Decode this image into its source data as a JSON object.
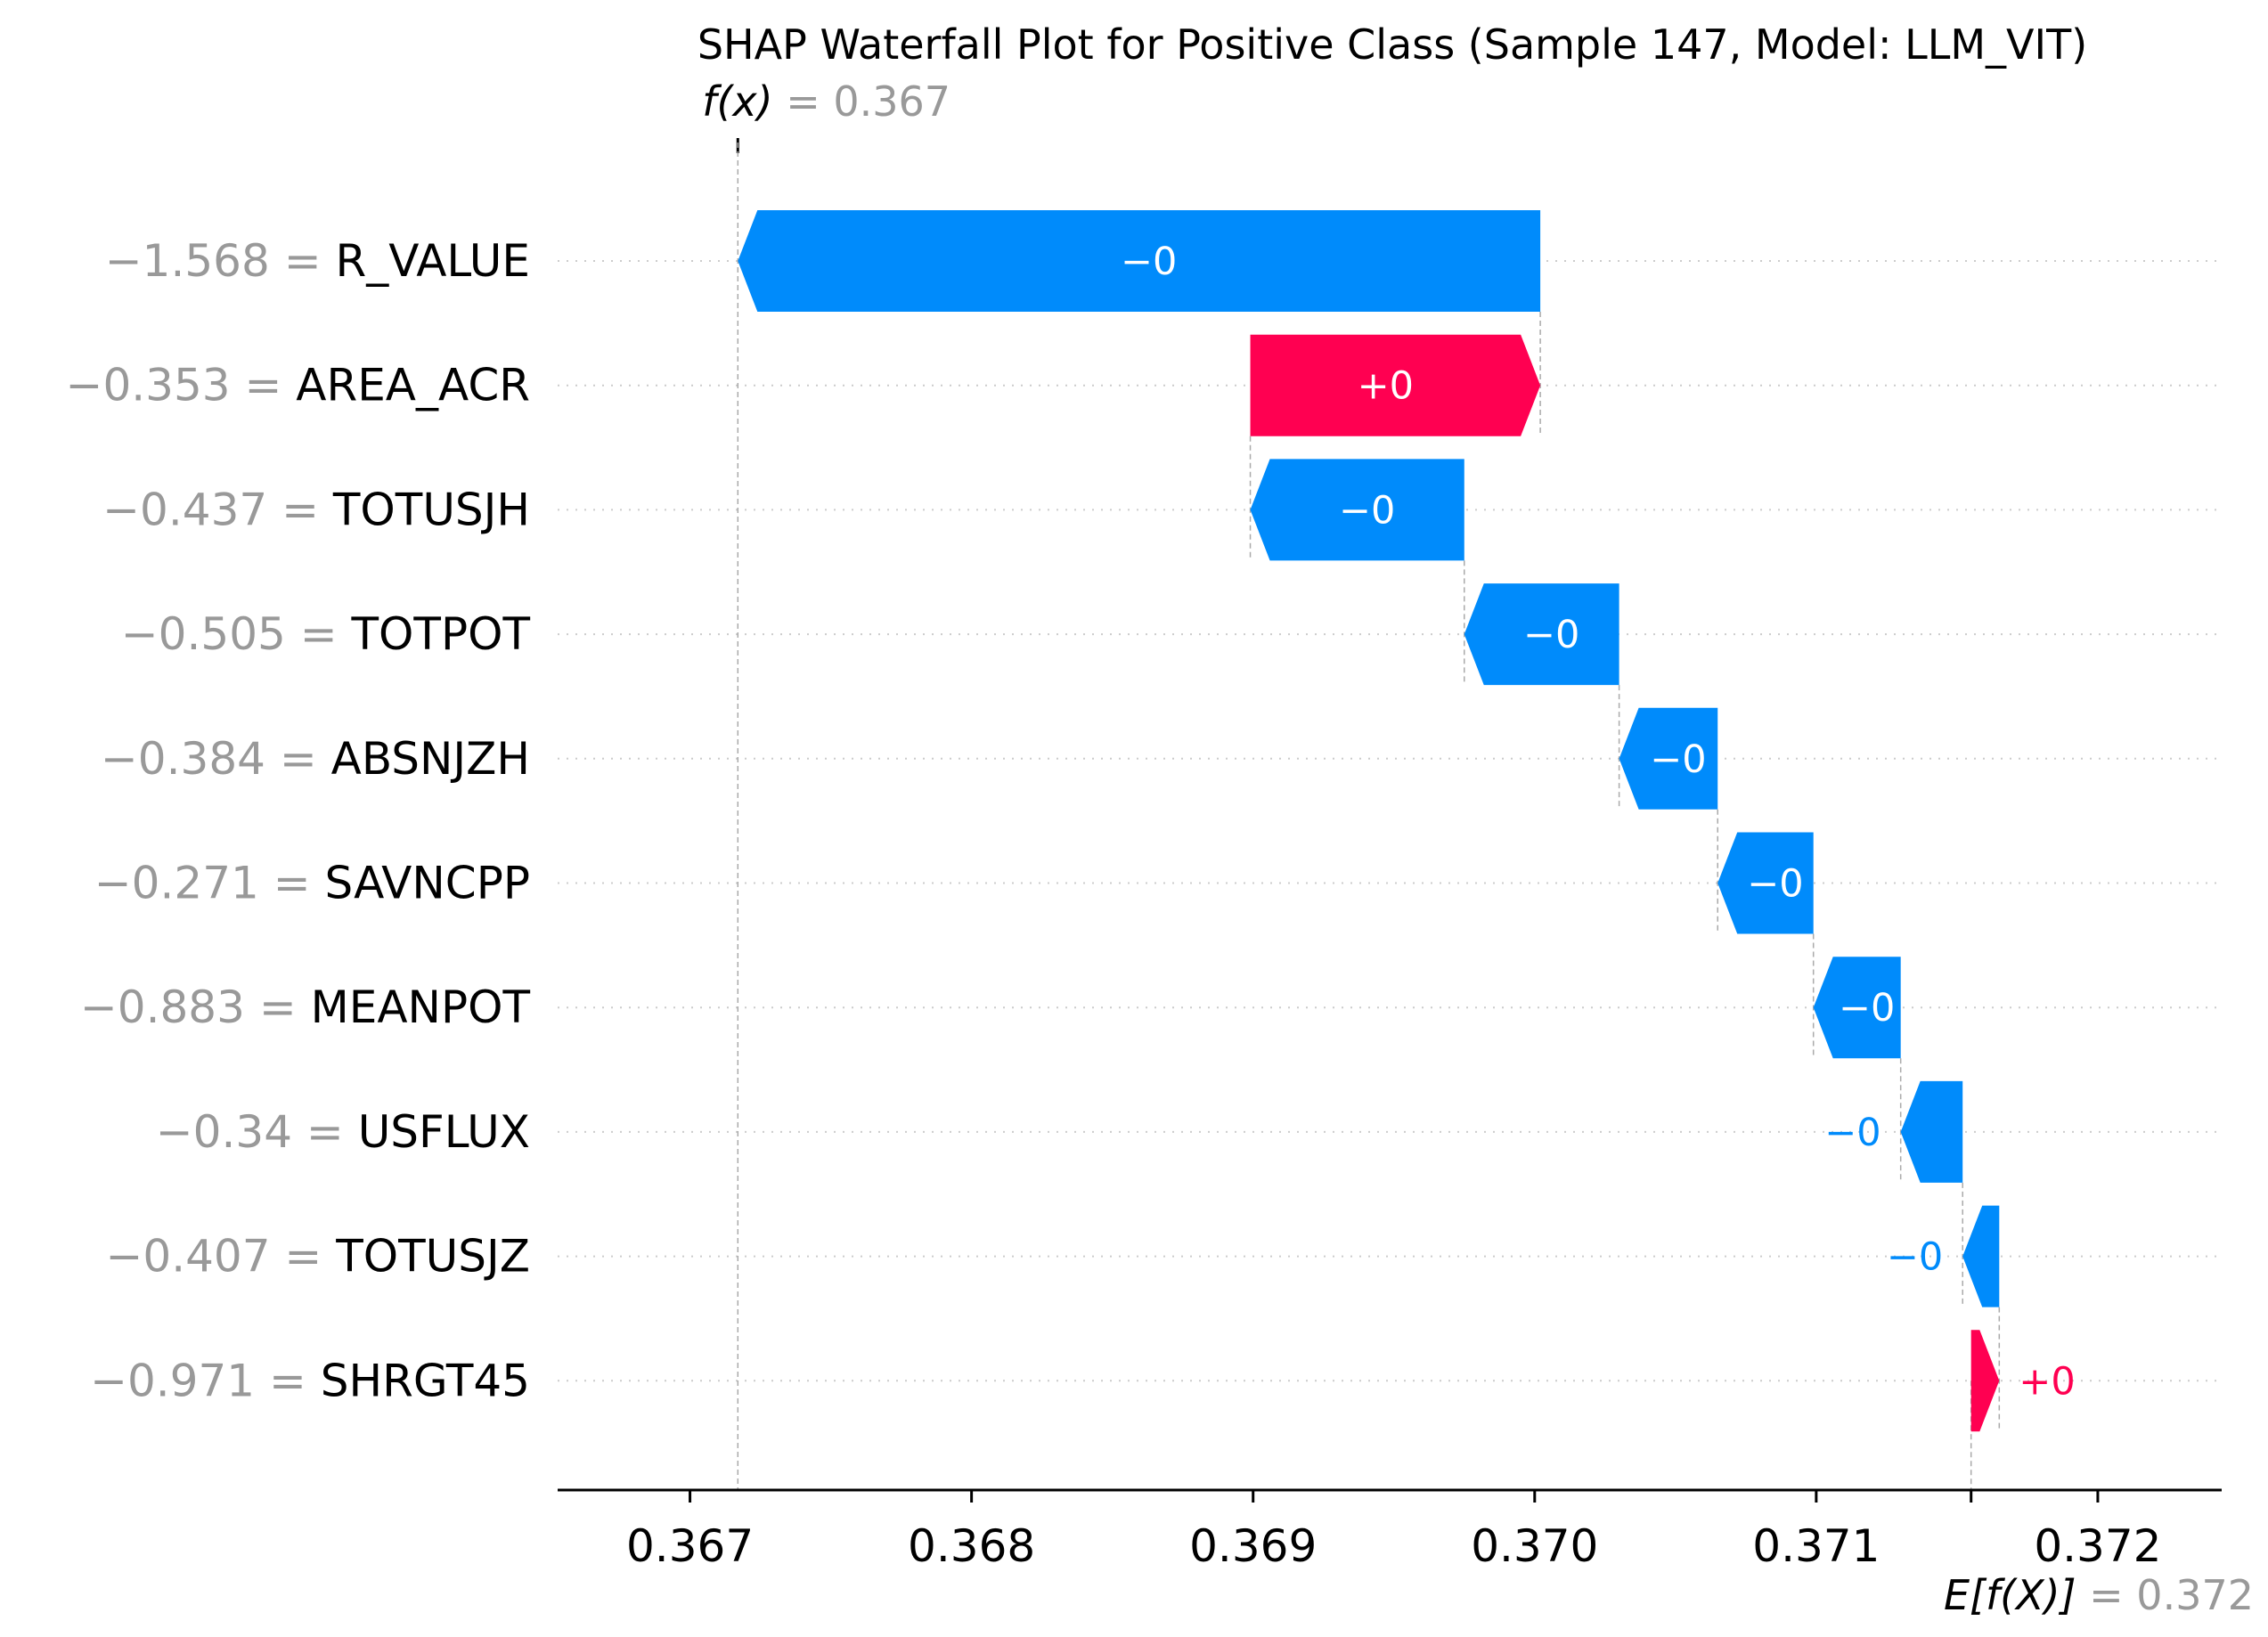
{
  "chart_data": {
    "type": "waterfall",
    "title": "SHAP Waterfall Plot for Positive Class (Sample 147, Model: LLM_VIT)",
    "fx": {
      "label": "f(x)",
      "value_text": "= 0.367",
      "value": 0.36717
    },
    "efx": {
      "label": "E[f(X)]",
      "value_text": "= 0.372",
      "value": 0.37155
    },
    "xlim": [
      0.36653,
      0.37244
    ],
    "xticks": [
      0.367,
      0.368,
      0.369,
      0.37,
      0.371,
      0.372
    ],
    "xtick_labels": [
      "0.367",
      "0.368",
      "0.369",
      "0.370",
      "0.371",
      "0.372"
    ],
    "colors": {
      "positive": "#ff0051",
      "negative": "#008bfb",
      "feature_value": "#999999",
      "gridline": "#cccccc"
    },
    "features": [
      {
        "feature_value": "−1.568 =",
        "name": "R_VALUE",
        "start": 0.37002,
        "end": 0.36717,
        "label": "−0",
        "sign": "negative"
      },
      {
        "feature_value": "−0.353 =",
        "name": "AREA_ACR",
        "start": 0.36899,
        "end": 0.37002,
        "label": "+0",
        "sign": "positive"
      },
      {
        "feature_value": "−0.437 =",
        "name": "TOTUSJH",
        "start": 0.36975,
        "end": 0.36899,
        "label": "−0",
        "sign": "negative"
      },
      {
        "feature_value": "−0.505 =",
        "name": "TOTPOT",
        "start": 0.3703,
        "end": 0.36975,
        "label": "−0",
        "sign": "negative"
      },
      {
        "feature_value": "−0.384 =",
        "name": "ABSNJZH",
        "start": 0.37065,
        "end": 0.3703,
        "label": "−0",
        "sign": "negative"
      },
      {
        "feature_value": "−0.271 =",
        "name": "SAVNCPP",
        "start": 0.37099,
        "end": 0.37065,
        "label": "−0",
        "sign": "negative"
      },
      {
        "feature_value": "−0.883 =",
        "name": "MEANPOT",
        "start": 0.3713,
        "end": 0.37099,
        "label": "−0",
        "sign": "negative"
      },
      {
        "feature_value": "−0.34 =",
        "name": "USFLUX",
        "start": 0.37152,
        "end": 0.3713,
        "label": "−0",
        "sign": "negative"
      },
      {
        "feature_value": "−0.407 =",
        "name": "TOTUSJZ",
        "start": 0.37165,
        "end": 0.37152,
        "label": "−0",
        "sign": "negative"
      },
      {
        "feature_value": "−0.971 =",
        "name": "SHRGT45",
        "start": 0.37155,
        "end": 0.37165,
        "label": "+0",
        "sign": "positive"
      }
    ]
  }
}
